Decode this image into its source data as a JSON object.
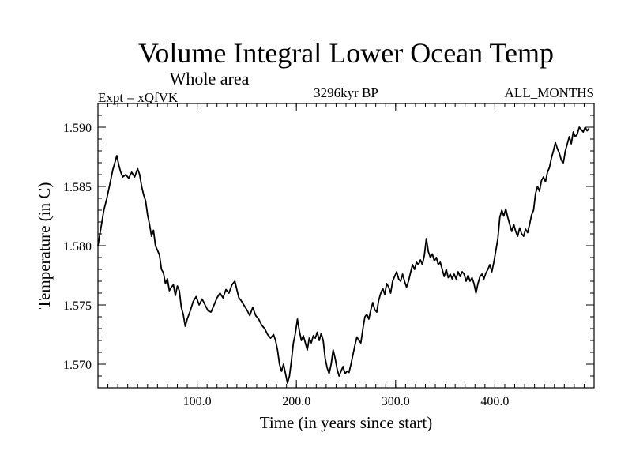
{
  "chart_data": {
    "type": "line",
    "title": "Volume Integral Lower Ocean Temp",
    "subtitle": "Whole area",
    "expt_label": "Expt = xQfVK",
    "period_label": "3296kyr BP",
    "months_label": "ALL_MONTHS",
    "xlabel": "Time (in years since start)",
    "ylabel": "Temperature (in C)",
    "xlim": [
      0,
      500
    ],
    "ylim": [
      1.568,
      1.592
    ],
    "x_ticks": [
      {
        "value": 100,
        "label": "100.0"
      },
      {
        "value": 200,
        "label": "200.0"
      },
      {
        "value": 300,
        "label": "300.0"
      },
      {
        "value": 400,
        "label": "400.0"
      }
    ],
    "y_ticks": [
      {
        "value": 1.57,
        "label": "1.570"
      },
      {
        "value": 1.575,
        "label": "1.575"
      },
      {
        "value": 1.58,
        "label": "1.580"
      },
      {
        "value": 1.585,
        "label": "1.585"
      },
      {
        "value": 1.59,
        "label": "1.590"
      }
    ],
    "x_minor_step": 10,
    "y_minor_step": 0.001,
    "series": [
      {
        "name": "Volume Integral Lower Ocean Temp",
        "color": "#000000",
        "points": [
          [
            0,
            1.58
          ],
          [
            3,
            1.5815
          ],
          [
            6,
            1.583
          ],
          [
            9,
            1.584
          ],
          [
            12,
            1.5852
          ],
          [
            15,
            1.5864
          ],
          [
            17,
            1.587
          ],
          [
            19,
            1.5876
          ],
          [
            21,
            1.5868
          ],
          [
            23,
            1.5862
          ],
          [
            25,
            1.5858
          ],
          [
            28,
            1.586
          ],
          [
            31,
            1.5857
          ],
          [
            34,
            1.5862
          ],
          [
            37,
            1.5858
          ],
          [
            40,
            1.5865
          ],
          [
            42,
            1.586
          ],
          [
            44,
            1.585
          ],
          [
            46,
            1.5843
          ],
          [
            48,
            1.5838
          ],
          [
            50,
            1.5826
          ],
          [
            52,
            1.5818
          ],
          [
            54,
            1.5808
          ],
          [
            56,
            1.5813
          ],
          [
            58,
            1.58
          ],
          [
            60,
            1.5796
          ],
          [
            62,
            1.5792
          ],
          [
            64,
            1.578
          ],
          [
            66,
            1.5777
          ],
          [
            68,
            1.5768
          ],
          [
            70,
            1.5772
          ],
          [
            72,
            1.5762
          ],
          [
            74,
            1.5765
          ],
          [
            76,
            1.5767
          ],
          [
            78,
            1.5758
          ],
          [
            80,
            1.5766
          ],
          [
            82,
            1.5762
          ],
          [
            84,
            1.5748
          ],
          [
            86,
            1.5742
          ],
          [
            88,
            1.5732
          ],
          [
            90,
            1.5738
          ],
          [
            93,
            1.5745
          ],
          [
            96,
            1.5753
          ],
          [
            99,
            1.5757
          ],
          [
            102,
            1.575
          ],
          [
            105,
            1.5755
          ],
          [
            108,
            1.575
          ],
          [
            111,
            1.5745
          ],
          [
            114,
            1.5744
          ],
          [
            117,
            1.575
          ],
          [
            120,
            1.5756
          ],
          [
            123,
            1.576
          ],
          [
            126,
            1.5756
          ],
          [
            129,
            1.5763
          ],
          [
            132,
            1.576
          ],
          [
            135,
            1.5767
          ],
          [
            138,
            1.577
          ],
          [
            140,
            1.5763
          ],
          [
            142,
            1.5756
          ],
          [
            144,
            1.5754
          ],
          [
            147,
            1.575
          ],
          [
            150,
            1.5746
          ],
          [
            153,
            1.5741
          ],
          [
            156,
            1.5748
          ],
          [
            159,
            1.5741
          ],
          [
            162,
            1.5738
          ],
          [
            165,
            1.5733
          ],
          [
            168,
            1.573
          ],
          [
            171,
            1.5725
          ],
          [
            174,
            1.5722
          ],
          [
            177,
            1.5725
          ],
          [
            179,
            1.572
          ],
          [
            181,
            1.5712
          ],
          [
            183,
            1.57
          ],
          [
            185,
            1.5694
          ],
          [
            187,
            1.57
          ],
          [
            189,
            1.5692
          ],
          [
            191,
            1.5684
          ],
          [
            193,
            1.569
          ],
          [
            195,
            1.5703
          ],
          [
            197,
            1.5718
          ],
          [
            199,
            1.5726
          ],
          [
            201,
            1.5738
          ],
          [
            203,
            1.5728
          ],
          [
            205,
            1.572
          ],
          [
            207,
            1.5724
          ],
          [
            209,
            1.5718
          ],
          [
            211,
            1.5712
          ],
          [
            213,
            1.5722
          ],
          [
            215,
            1.5718
          ],
          [
            217,
            1.5724
          ],
          [
            219,
            1.5722
          ],
          [
            221,
            1.5727
          ],
          [
            223,
            1.572
          ],
          [
            225,
            1.5726
          ],
          [
            227,
            1.572
          ],
          [
            229,
            1.5705
          ],
          [
            231,
            1.5697
          ],
          [
            233,
            1.5692
          ],
          [
            235,
            1.57
          ],
          [
            237,
            1.5712
          ],
          [
            239,
            1.5705
          ],
          [
            241,
            1.5696
          ],
          [
            243,
            1.569
          ],
          [
            245,
            1.5694
          ],
          [
            247,
            1.5698
          ],
          [
            249,
            1.5692
          ],
          [
            251,
            1.5694
          ],
          [
            253,
            1.5693
          ],
          [
            255,
            1.57
          ],
          [
            257,
            1.5708
          ],
          [
            259,
            1.5716
          ],
          [
            261,
            1.5723
          ],
          [
            263,
            1.572
          ],
          [
            265,
            1.5718
          ],
          [
            267,
            1.573
          ],
          [
            269,
            1.574
          ],
          [
            271,
            1.5742
          ],
          [
            273,
            1.5738
          ],
          [
            275,
            1.5746
          ],
          [
            277,
            1.5752
          ],
          [
            279,
            1.5746
          ],
          [
            281,
            1.5744
          ],
          [
            283,
            1.5754
          ],
          [
            285,
            1.576
          ],
          [
            287,
            1.5764
          ],
          [
            289,
            1.5759
          ],
          [
            291,
            1.5768
          ],
          [
            293,
            1.5765
          ],
          [
            295,
            1.576
          ],
          [
            297,
            1.577
          ],
          [
            299,
            1.5774
          ],
          [
            301,
            1.5778
          ],
          [
            303,
            1.5772
          ],
          [
            305,
            1.577
          ],
          [
            307,
            1.5776
          ],
          [
            309,
            1.577
          ],
          [
            311,
            1.5765
          ],
          [
            313,
            1.577
          ],
          [
            315,
            1.5777
          ],
          [
            317,
            1.5784
          ],
          [
            319,
            1.578
          ],
          [
            321,
            1.5786
          ],
          [
            323,
            1.5784
          ],
          [
            325,
            1.5788
          ],
          [
            327,
            1.5784
          ],
          [
            329,
            1.5792
          ],
          [
            331,
            1.5806
          ],
          [
            333,
            1.5795
          ],
          [
            335,
            1.579
          ],
          [
            337,
            1.5793
          ],
          [
            339,
            1.5787
          ],
          [
            341,
            1.579
          ],
          [
            343,
            1.5784
          ],
          [
            345,
            1.5786
          ],
          [
            347,
            1.578
          ],
          [
            349,
            1.5774
          ],
          [
            351,
            1.578
          ],
          [
            353,
            1.5773
          ],
          [
            355,
            1.5776
          ],
          [
            357,
            1.5772
          ],
          [
            359,
            1.5776
          ],
          [
            361,
            1.5772
          ],
          [
            363,
            1.5778
          ],
          [
            365,
            1.5774
          ],
          [
            367,
            1.5778
          ],
          [
            369,
            1.5776
          ],
          [
            371,
            1.577
          ],
          [
            373,
            1.5775
          ],
          [
            375,
            1.577
          ],
          [
            377,
            1.5773
          ],
          [
            379,
            1.5768
          ],
          [
            381,
            1.576
          ],
          [
            383,
            1.5768
          ],
          [
            385,
            1.5774
          ],
          [
            387,
            1.5776
          ],
          [
            389,
            1.5772
          ],
          [
            391,
            1.5777
          ],
          [
            393,
            1.578
          ],
          [
            395,
            1.5784
          ],
          [
            397,
            1.5778
          ],
          [
            399,
            1.5786
          ],
          [
            401,
            1.5796
          ],
          [
            403,
            1.5806
          ],
          [
            405,
            1.5824
          ],
          [
            407,
            1.583
          ],
          [
            409,
            1.5825
          ],
          [
            411,
            1.5831
          ],
          [
            413,
            1.5824
          ],
          [
            415,
            1.5818
          ],
          [
            417,
            1.5812
          ],
          [
            419,
            1.5818
          ],
          [
            421,
            1.5812
          ],
          [
            423,
            1.5808
          ],
          [
            425,
            1.5815
          ],
          [
            427,
            1.581
          ],
          [
            429,
            1.5808
          ],
          [
            431,
            1.5814
          ],
          [
            433,
            1.5811
          ],
          [
            435,
            1.5818
          ],
          [
            437,
            1.5826
          ],
          [
            439,
            1.583
          ],
          [
            441,
            1.5844
          ],
          [
            443,
            1.585
          ],
          [
            445,
            1.5846
          ],
          [
            447,
            1.5855
          ],
          [
            449,
            1.5858
          ],
          [
            451,
            1.5854
          ],
          [
            453,
            1.5862
          ],
          [
            455,
            1.5866
          ],
          [
            457,
            1.5874
          ],
          [
            459,
            1.588
          ],
          [
            461,
            1.5887
          ],
          [
            463,
            1.5882
          ],
          [
            465,
            1.5878
          ],
          [
            467,
            1.5872
          ],
          [
            469,
            1.587
          ],
          [
            471,
            1.588
          ],
          [
            473,
            1.5886
          ],
          [
            475,
            1.5892
          ],
          [
            477,
            1.5886
          ],
          [
            479,
            1.5896
          ],
          [
            481,
            1.5892
          ],
          [
            483,
            1.5894
          ],
          [
            485,
            1.59
          ],
          [
            487,
            1.5898
          ],
          [
            489,
            1.5896
          ],
          [
            491,
            1.59
          ],
          [
            493,
            1.5897
          ],
          [
            495,
            1.5899
          ]
        ]
      }
    ]
  }
}
